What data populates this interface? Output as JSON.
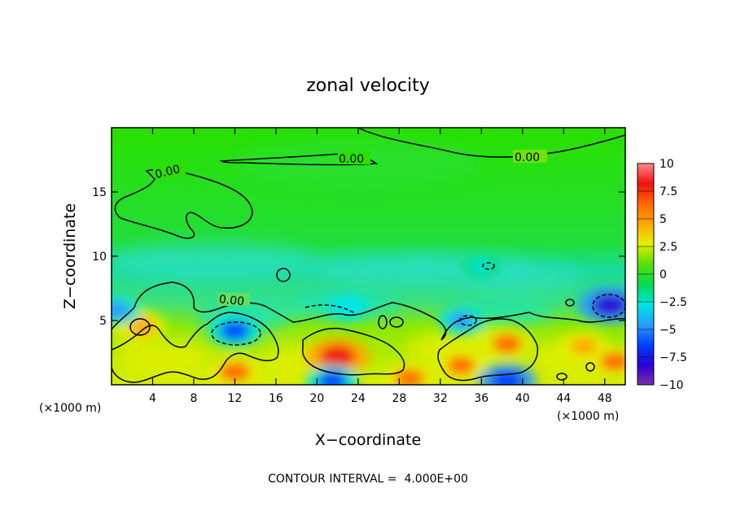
{
  "chart_data": {
    "type": "heatmap",
    "title": "zonal velocity",
    "xlabel": "X−coordinate",
    "ylabel": "Z−coordinate",
    "x_unit_left": "(×1000 m)",
    "x_unit_right": "(×1000 m)",
    "xlim": [
      0,
      50
    ],
    "ylim": [
      0,
      20
    ],
    "x_ticks": [
      4,
      8,
      12,
      16,
      20,
      24,
      28,
      32,
      36,
      40,
      44,
      48
    ],
    "x_tick_labels": [
      "4",
      "8",
      "12",
      "16",
      "20",
      "24",
      "28",
      "32",
      "36",
      "40",
      "44",
      "48"
    ],
    "y_ticks": [
      5,
      10,
      15
    ],
    "y_tick_labels": [
      "5",
      "10",
      "15"
    ],
    "colorbar": {
      "range": [
        -10,
        10
      ],
      "ticks": [
        10,
        7.5,
        5,
        2.5,
        0,
        -2.5,
        -5,
        -7.5,
        -10
      ],
      "tick_labels": [
        "10",
        "7.5",
        "5",
        "2.5",
        "0",
        "−2.5",
        "−5",
        "−7.5",
        "−10"
      ],
      "colors": [
        "#7b2fa8",
        "#2b00d8",
        "#0040ff",
        "#2a9bff",
        "#00e5e5",
        "#00dc55",
        "#5ee000",
        "#e6ef00",
        "#ffa500",
        "#ff6600",
        "#f01010",
        "#ff8a8a"
      ]
    },
    "contour_labels": [
      "0.00",
      "0.00",
      "0.00",
      "0.00"
    ],
    "contour_interval": "CONTOUR INTERVAL =  4.000E+00",
    "features": [
      {
        "x": 22,
        "z": 2.2,
        "value": 8.0
      },
      {
        "x": 12,
        "z": 1.0,
        "value": 6.5
      },
      {
        "x": 38.5,
        "z": 3.2,
        "value": 6.0
      },
      {
        "x": 34,
        "z": 1.5,
        "value": 5.5
      },
      {
        "x": 49,
        "z": 1.8,
        "value": 6.0
      },
      {
        "x": 29,
        "z": 0.5,
        "value": 6.0
      },
      {
        "x": 3,
        "z": 4.5,
        "value": 5.0
      },
      {
        "x": 46,
        "z": 3.0,
        "value": 5.0
      },
      {
        "x": 12,
        "z": 4.2,
        "value": -6.0
      },
      {
        "x": 48.5,
        "z": 6.2,
        "value": -8.0
      },
      {
        "x": 38.5,
        "z": 0.3,
        "value": -7.0
      },
      {
        "x": 21.5,
        "z": 0.3,
        "value": -6.0
      },
      {
        "x": 0.5,
        "z": 5.8,
        "value": -5.0
      },
      {
        "x": 34,
        "z": 5.0,
        "value": -4.5
      },
      {
        "x": 23,
        "z": 6.0,
        "value": -3.5
      },
      {
        "x": 36,
        "z": 9.2,
        "value": -2.5
      }
    ]
  }
}
